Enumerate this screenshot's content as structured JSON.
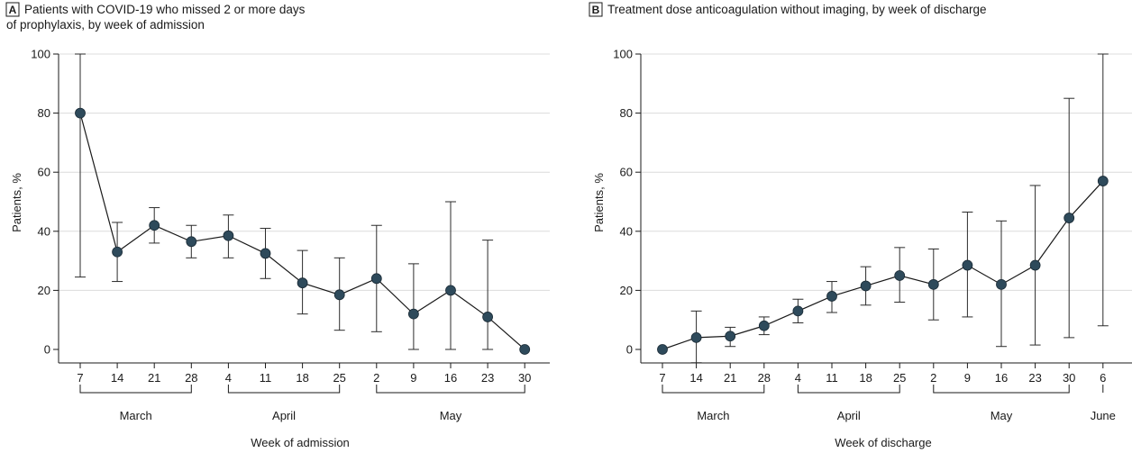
{
  "panels": [
    {
      "letter": "A",
      "title_lines": [
        "Patients with COVID-19 who missed 2 or more days",
        "of prophylaxis, by week of admission"
      ],
      "ylabel": "Patients, %",
      "xlabel": "Week of admission",
      "months": [
        "March",
        "April",
        "May"
      ]
    },
    {
      "letter": "B",
      "title_lines": [
        "Treatment dose anticoagulation without imaging, by week of discharge"
      ],
      "ylabel": "Patients, %",
      "xlabel": "Week of discharge",
      "months": [
        "March",
        "April",
        "May",
        "June"
      ]
    }
  ],
  "chart_data": [
    {
      "type": "line",
      "title": "Patients with COVID-19 who missed 2 or more days of prophylaxis, by week of admission",
      "xlabel": "Week of admission",
      "ylabel": "Patients, %",
      "ylim": [
        0,
        100
      ],
      "yticks": [
        0,
        20,
        40,
        60,
        80,
        100
      ],
      "grid": true,
      "categories": [
        "7",
        "14",
        "21",
        "28",
        "4",
        "11",
        "18",
        "25",
        "2",
        "9",
        "16",
        "23",
        "30"
      ],
      "month_groups": [
        {
          "label": "March",
          "from": 0,
          "to": 3
        },
        {
          "label": "April",
          "from": 4,
          "to": 7
        },
        {
          "label": "May",
          "from": 8,
          "to": 12
        }
      ],
      "values": [
        80,
        33,
        42,
        36.5,
        38.5,
        32.5,
        22.5,
        18.5,
        24,
        12,
        20,
        11,
        0
      ],
      "ci_lower": [
        24.5,
        23,
        36,
        31,
        31,
        24,
        12,
        6.5,
        6,
        0,
        0,
        0,
        0
      ],
      "ci_upper": [
        100,
        43,
        48,
        42,
        45.5,
        41,
        33.5,
        31,
        42,
        29,
        50,
        37,
        0
      ]
    },
    {
      "type": "line",
      "title": "Treatment dose anticoagulation without imaging, by week of discharge",
      "xlabel": "Week of discharge",
      "ylabel": "Patients, %",
      "ylim": [
        0,
        100
      ],
      "yticks": [
        0,
        20,
        40,
        60,
        80,
        100
      ],
      "grid": true,
      "categories": [
        "7",
        "14",
        "21",
        "28",
        "4",
        "11",
        "18",
        "25",
        "2",
        "9",
        "16",
        "23",
        "30",
        "6"
      ],
      "month_groups": [
        {
          "label": "March",
          "from": 0,
          "to": 3
        },
        {
          "label": "April",
          "from": 4,
          "to": 7
        },
        {
          "label": "May",
          "from": 8,
          "to": 12
        },
        {
          "label": "June",
          "from": 13,
          "to": 13
        }
      ],
      "values": [
        0,
        4,
        4.5,
        8,
        13,
        18,
        21.5,
        25,
        22,
        28.5,
        22,
        28.5,
        44.5,
        57
      ],
      "ci_lower": [
        0,
        -4.5,
        1,
        5,
        9,
        12.5,
        15,
        16,
        10,
        11,
        1,
        1.5,
        4,
        8
      ],
      "ci_upper": [
        0,
        13,
        7.5,
        11,
        17,
        23,
        28,
        34.5,
        34,
        46.5,
        43.5,
        55.5,
        85,
        100
      ]
    }
  ]
}
